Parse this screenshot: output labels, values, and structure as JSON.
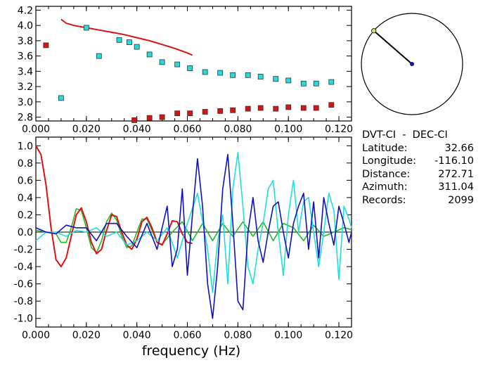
{
  "info": {
    "station_pair": "DVT-CI  -  DEC-CI",
    "rows": [
      {
        "key": "Latitude:",
        "value": "32.66"
      },
      {
        "key": "Longitude:",
        "value": "-116.10"
      },
      {
        "key": "Distance:",
        "value": "272.71"
      },
      {
        "key": "Azimuth:",
        "value": "311.04"
      },
      {
        "key": "Records:",
        "value": "2099"
      }
    ]
  },
  "colors": {
    "red": "#dd1111",
    "cyan": "#22dddd",
    "blue": "#1111bb",
    "green": "#22bb22",
    "black": "#000000",
    "marker_yellow": "#dddd55",
    "marker_blue": "#1111aa"
  },
  "chart_data": [
    {
      "type": "scatter",
      "xlim": [
        0.0,
        0.125
      ],
      "ylim": [
        2.75,
        4.25
      ],
      "x_ticks": [
        "0.000",
        "0.020",
        "0.040",
        "0.060",
        "0.080",
        "0.100",
        "0.120"
      ],
      "y_ticks": [
        "2.8",
        "3.0",
        "3.2",
        "3.4",
        "3.6",
        "3.8",
        "4.0",
        "4.2"
      ],
      "series": [
        {
          "style": "line",
          "color": "red",
          "x": [
            0.01,
            0.012,
            0.015,
            0.02,
            0.025,
            0.03,
            0.035,
            0.04,
            0.045,
            0.05,
            0.055,
            0.06,
            0.062
          ],
          "y": [
            4.08,
            4.03,
            4.0,
            3.97,
            3.94,
            3.91,
            3.88,
            3.84,
            3.8,
            3.75,
            3.7,
            3.64,
            3.61
          ]
        },
        {
          "style": "squares",
          "color": "cyan",
          "x": [
            0.01,
            0.02,
            0.025,
            0.033,
            0.037,
            0.04,
            0.045,
            0.05,
            0.056,
            0.061,
            0.067,
            0.073,
            0.078,
            0.084,
            0.089,
            0.095,
            0.1,
            0.106,
            0.111,
            0.117
          ],
          "y": [
            3.05,
            3.97,
            3.6,
            3.81,
            3.78,
            3.72,
            3.62,
            3.52,
            3.49,
            3.44,
            3.39,
            3.38,
            3.35,
            3.35,
            3.33,
            3.3,
            3.28,
            3.24,
            3.24,
            3.26
          ]
        },
        {
          "style": "squares",
          "color": "red",
          "x": [
            0.004,
            0.039,
            0.045,
            0.05,
            0.056,
            0.061,
            0.067,
            0.073,
            0.078,
            0.084,
            0.089,
            0.095,
            0.1,
            0.106,
            0.111,
            0.117
          ],
          "y": [
            3.74,
            2.76,
            2.79,
            2.8,
            2.85,
            2.85,
            2.87,
            2.88,
            2.89,
            2.91,
            2.92,
            2.91,
            2.93,
            2.92,
            2.92,
            2.96
          ]
        }
      ]
    },
    {
      "type": "line",
      "xlim": [
        0.0,
        0.125
      ],
      "ylim": [
        -1.1,
        1.1
      ],
      "x_ticks": [
        "0.000",
        "0.020",
        "0.040",
        "0.060",
        "0.080",
        "0.100",
        "0.120"
      ],
      "y_ticks": [
        "-1.0",
        "-0.8",
        "-0.6",
        "-0.4",
        "-0.2",
        "0.0",
        "0.2",
        "0.4",
        "0.6",
        "0.8",
        "1.0"
      ],
      "xlabel": "frequency  (Hz)",
      "series": [
        {
          "color": "red",
          "x": [
            0.0,
            0.002,
            0.004,
            0.006,
            0.008,
            0.01,
            0.012,
            0.014,
            0.016,
            0.018,
            0.02,
            0.022,
            0.024,
            0.026,
            0.028,
            0.03,
            0.032,
            0.034,
            0.036,
            0.038,
            0.04,
            0.042,
            0.044,
            0.046,
            0.048,
            0.05,
            0.052,
            0.054,
            0.056,
            0.058,
            0.06,
            0.062
          ],
          "y": [
            1.0,
            0.9,
            0.55,
            0.05,
            -0.32,
            -0.4,
            -0.3,
            -0.05,
            0.2,
            0.28,
            0.12,
            -0.12,
            -0.25,
            -0.2,
            0.02,
            0.2,
            0.18,
            0.0,
            -0.15,
            -0.2,
            -0.08,
            0.12,
            0.17,
            0.05,
            -0.12,
            -0.15,
            -0.02,
            0.13,
            0.12,
            -0.02,
            -0.12,
            -0.13
          ]
        },
        {
          "color": "green",
          "x": [
            0.0,
            0.004,
            0.008,
            0.01,
            0.012,
            0.014,
            0.016,
            0.018,
            0.02,
            0.022,
            0.024,
            0.026,
            0.028,
            0.03,
            0.032,
            0.034,
            0.036,
            0.038,
            0.04,
            0.042,
            0.044,
            0.046,
            0.048,
            0.05,
            0.054,
            0.058,
            0.062,
            0.066,
            0.07,
            0.074,
            0.078,
            0.082,
            0.086,
            0.09,
            0.094,
            0.098,
            0.102,
            0.106,
            0.11,
            0.114,
            0.118,
            0.122,
            0.125
          ],
          "y": [
            0.02,
            0.0,
            -0.02,
            -0.12,
            -0.12,
            0.05,
            0.27,
            0.25,
            0.05,
            -0.18,
            -0.24,
            -0.1,
            0.12,
            0.22,
            0.14,
            -0.05,
            -0.18,
            -0.16,
            0.0,
            0.15,
            0.15,
            0.02,
            -0.12,
            -0.14,
            0.0,
            0.12,
            -0.1,
            0.1,
            -0.1,
            0.1,
            -0.05,
            0.12,
            -0.05,
            0.12,
            -0.1,
            0.1,
            0.05,
            -0.1,
            0.08,
            -0.05,
            0.0,
            0.05,
            0.03
          ]
        },
        {
          "color": "blue",
          "x": [
            0.0,
            0.004,
            0.008,
            0.012,
            0.016,
            0.02,
            0.024,
            0.028,
            0.032,
            0.036,
            0.04,
            0.044,
            0.048,
            0.052,
            0.054,
            0.056,
            0.058,
            0.06,
            0.062,
            0.064,
            0.066,
            0.068,
            0.07,
            0.072,
            0.074,
            0.076,
            0.078,
            0.08,
            0.082,
            0.084,
            0.086,
            0.088,
            0.09,
            0.092,
            0.094,
            0.096,
            0.098,
            0.1,
            0.102,
            0.104,
            0.106,
            0.108,
            0.11,
            0.112,
            0.114,
            0.116,
            0.118,
            0.12,
            0.122,
            0.124,
            0.125
          ],
          "y": [
            0.05,
            0.0,
            -0.02,
            0.08,
            0.05,
            0.05,
            -0.1,
            0.1,
            0.1,
            -0.05,
            -0.18,
            0.1,
            -0.2,
            0.3,
            -0.4,
            -0.2,
            0.5,
            -0.5,
            0.2,
            0.85,
            0.3,
            -0.6,
            -1.0,
            -0.4,
            0.5,
            0.9,
            0.1,
            -0.8,
            -0.9,
            0.0,
            0.4,
            -0.1,
            -0.35,
            0.0,
            0.3,
            0.35,
            0.0,
            -0.3,
            0.1,
            0.3,
            0.45,
            -0.2,
            0.35,
            -0.3,
            0.4,
            0.1,
            -0.15,
            0.3,
            0.1,
            -0.12,
            0.0
          ]
        },
        {
          "color": "cyan",
          "x": [
            0.0,
            0.004,
            0.008,
            0.012,
            0.016,
            0.02,
            0.024,
            0.028,
            0.032,
            0.036,
            0.04,
            0.044,
            0.048,
            0.052,
            0.056,
            0.06,
            0.064,
            0.068,
            0.07,
            0.072,
            0.074,
            0.076,
            0.078,
            0.08,
            0.082,
            0.084,
            0.086,
            0.088,
            0.09,
            0.092,
            0.094,
            0.096,
            0.098,
            0.1,
            0.102,
            0.104,
            0.106,
            0.108,
            0.11,
            0.112,
            0.114,
            0.116,
            0.118,
            0.12,
            0.122,
            0.124,
            0.125
          ],
          "y": [
            -0.1,
            0.0,
            0.0,
            -0.05,
            0.02,
            0.0,
            0.05,
            -0.05,
            0.0,
            -0.15,
            -0.1,
            0.0,
            -0.1,
            0.05,
            -0.3,
            0.1,
            0.45,
            -0.2,
            -0.7,
            -0.1,
            0.2,
            -0.6,
            0.5,
            0.92,
            0.3,
            -0.4,
            -0.6,
            -0.2,
            0.1,
            0.5,
            0.6,
            0.0,
            -0.5,
            0.2,
            0.6,
            0.0,
            0.35,
            0.4,
            0.0,
            -0.4,
            0.0,
            0.45,
            0.25,
            -0.55,
            0.3,
            0.15,
            0.05
          ]
        }
      ]
    },
    {
      "type": "polar",
      "azimuth_deg": 311.04,
      "line_color": "black"
    }
  ]
}
